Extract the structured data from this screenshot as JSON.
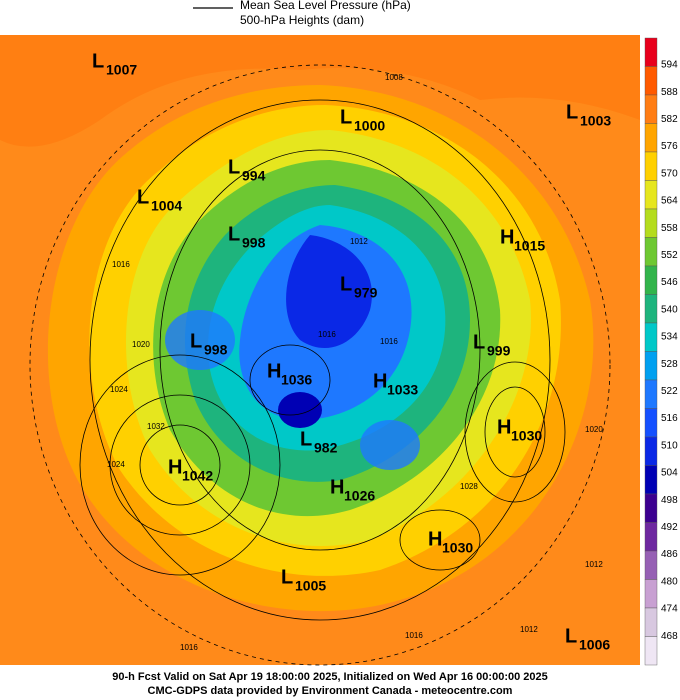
{
  "legend": {
    "items": [
      "Mean Sea Level Pressure (hPa)",
      "500-hPa Heights (dam)"
    ]
  },
  "colorbar": {
    "levels": [
      {
        "label": "594",
        "color": "#e8001c"
      },
      {
        "label": "588",
        "color": "#ff5a00"
      },
      {
        "label": "582",
        "color": "#ff7d14"
      },
      {
        "label": "576",
        "color": "#ffa500"
      },
      {
        "label": "570",
        "color": "#ffd000"
      },
      {
        "label": "564",
        "color": "#e6e61e"
      },
      {
        "label": "558",
        "color": "#b4dc1e"
      },
      {
        "label": "552",
        "color": "#6ec832"
      },
      {
        "label": "546",
        "color": "#32b44b"
      },
      {
        "label": "540",
        "color": "#1eb47d"
      },
      {
        "label": "534",
        "color": "#00c8c8"
      },
      {
        "label": "528",
        "color": "#00a0f0"
      },
      {
        "label": "522",
        "color": "#1e78ff"
      },
      {
        "label": "516",
        "color": "#1450ff"
      },
      {
        "label": "510",
        "color": "#0a28e6"
      },
      {
        "label": "504",
        "color": "#0000b4"
      },
      {
        "label": "498",
        "color": "#3c0090"
      },
      {
        "label": "492",
        "color": "#6e28a0"
      },
      {
        "label": "486",
        "color": "#9660b4"
      },
      {
        "label": "480",
        "color": "#c8a0d2"
      },
      {
        "label": "474",
        "color": "#d8c8e0"
      },
      {
        "label": "468",
        "color": "#efe6f4"
      }
    ]
  },
  "centers": [
    {
      "kind": "L",
      "value": "1007"
    },
    {
      "kind": "L",
      "value": "1000"
    },
    {
      "kind": "L",
      "value": "1003"
    },
    {
      "kind": "L",
      "value": "994"
    },
    {
      "kind": "L",
      "value": "1004"
    },
    {
      "kind": "L",
      "value": "998"
    },
    {
      "kind": "H",
      "value": "1015"
    },
    {
      "kind": "L",
      "value": "979"
    },
    {
      "kind": "L",
      "value": "998"
    },
    {
      "kind": "L",
      "value": "999"
    },
    {
      "kind": "H",
      "value": "1036"
    },
    {
      "kind": "H",
      "value": "1033"
    },
    {
      "kind": "H",
      "value": "1030"
    },
    {
      "kind": "L",
      "value": "982"
    },
    {
      "kind": "H",
      "value": "1042"
    },
    {
      "kind": "H",
      "value": "1026"
    },
    {
      "kind": "H",
      "value": "1030"
    },
    {
      "kind": "L",
      "value": "1005"
    },
    {
      "kind": "L",
      "value": "1006"
    }
  ],
  "contour_labels": [
    "1008",
    "1012",
    "1016",
    "1020",
    "1024",
    "1032",
    "1028",
    "1016",
    "1016",
    "1012",
    "1020",
    "1012",
    "1016",
    "1016",
    "1024"
  ],
  "footer": {
    "line1": "90-h Fcst Valid on Sat Apr 19 18:00:00 2025, Initialized on Wed Apr 16 00:00:00 2025",
    "line2": "CMC-GDPS data provided by Environment Canada - meteocentre.com"
  }
}
